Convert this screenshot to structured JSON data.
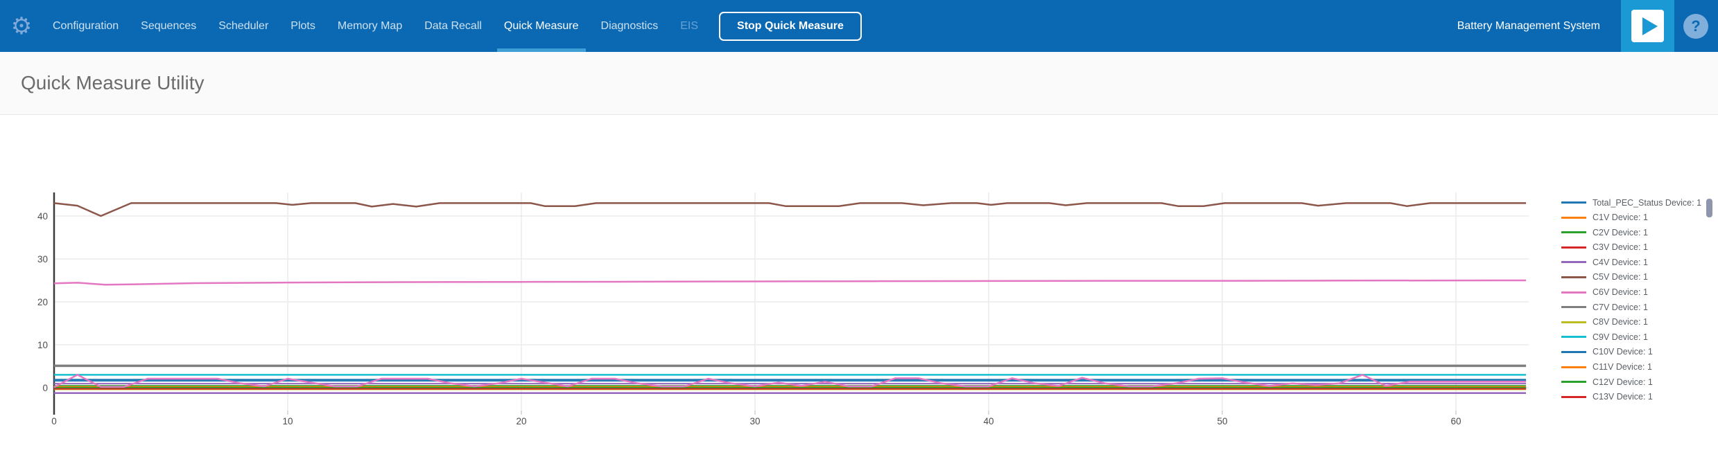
{
  "navbar": {
    "items": [
      {
        "label": "Configuration",
        "state": "normal"
      },
      {
        "label": "Sequences",
        "state": "normal"
      },
      {
        "label": "Scheduler",
        "state": "normal"
      },
      {
        "label": "Plots",
        "state": "normal"
      },
      {
        "label": "Memory Map",
        "state": "normal"
      },
      {
        "label": "Data Recall",
        "state": "normal"
      },
      {
        "label": "Quick Measure",
        "state": "active"
      },
      {
        "label": "Diagnostics",
        "state": "normal"
      },
      {
        "label": "EIS",
        "state": "disabled"
      }
    ],
    "stop_button_label": "Stop Quick Measure",
    "app_title": "Battery Management System",
    "gear_glyph": "⚙",
    "help_glyph": "?"
  },
  "header": {
    "title": "Quick Measure Utility"
  },
  "colors": {
    "navbar_bg": "#0b69b4",
    "active_tab_underline": "#3f9ed6",
    "play_tile_bg": "#1a99d5",
    "help_circle_bg": "#7fafda",
    "grid": "#ececec",
    "axis_line": "#3c3c3c",
    "tick_label": "#4c4c4c"
  },
  "chart_data": {
    "type": "line",
    "title": "",
    "xlabel": "",
    "ylabel": "",
    "xlim": [
      0,
      63
    ],
    "ylim": [
      -5.3,
      45.5
    ],
    "x_ticks": [
      0,
      10,
      20,
      30,
      40,
      50,
      60
    ],
    "y_ticks": [
      0,
      10,
      20,
      30,
      40
    ],
    "grid": true,
    "legend_position": "right",
    "series": [
      {
        "name": "Total_PEC_Status Device: 1",
        "color": "#1f77b4",
        "width": 2,
        "points": [
          [
            0,
            1.9
          ],
          [
            63,
            1.9
          ]
        ]
      },
      {
        "name": "C1V Device: 1",
        "color": "#ff7f0e",
        "width": 2,
        "points": [
          [
            0,
            0.05
          ],
          [
            63,
            0.05
          ]
        ]
      },
      {
        "name": "C2V Device: 1",
        "color": "#2ca02c",
        "width": 2,
        "points": [
          [
            0,
            0.45
          ],
          [
            63,
            0.45
          ]
        ]
      },
      {
        "name": "C3V Device: 1",
        "color": "#d62728",
        "width": 2,
        "points": [
          [
            0,
            -0.1
          ],
          [
            63,
            -0.1
          ]
        ]
      },
      {
        "name": "C4V Device: 1",
        "color": "#9467bd",
        "width": 2,
        "points": [
          [
            0,
            0.95
          ],
          [
            63,
            0.95
          ]
        ]
      },
      {
        "name": "C5V Device: 1",
        "color": "#8c564b",
        "width": 2.5,
        "points": [
          [
            0,
            43
          ],
          [
            1,
            42.4
          ],
          [
            2,
            40
          ],
          [
            3.3,
            43
          ],
          [
            9.5,
            43
          ],
          [
            10.2,
            42.6
          ],
          [
            11,
            43
          ],
          [
            12.9,
            43
          ],
          [
            13.6,
            42.2
          ],
          [
            14.5,
            42.8
          ],
          [
            15.5,
            42.2
          ],
          [
            16.5,
            43
          ],
          [
            20.4,
            43
          ],
          [
            21,
            42.3
          ],
          [
            22.3,
            42.3
          ],
          [
            23.2,
            43
          ],
          [
            30.6,
            43
          ],
          [
            31.3,
            42.3
          ],
          [
            33.6,
            42.3
          ],
          [
            34.5,
            43
          ],
          [
            36.3,
            43
          ],
          [
            37.2,
            42.5
          ],
          [
            38.4,
            43
          ],
          [
            39.5,
            43
          ],
          [
            40.1,
            42.6
          ],
          [
            40.8,
            43
          ],
          [
            42.6,
            43
          ],
          [
            43.3,
            42.5
          ],
          [
            44.2,
            43
          ],
          [
            47.4,
            43
          ],
          [
            48.1,
            42.3
          ],
          [
            49.2,
            42.3
          ],
          [
            50.1,
            43
          ],
          [
            53.4,
            43
          ],
          [
            54.1,
            42.4
          ],
          [
            55.3,
            43
          ],
          [
            57.2,
            43
          ],
          [
            57.9,
            42.3
          ],
          [
            58.9,
            43
          ],
          [
            63,
            43
          ]
        ]
      },
      {
        "name": "C6V Device: 1",
        "color": "#e377c2",
        "width": 2.5,
        "points": [
          [
            0,
            24.3
          ],
          [
            1,
            24.45
          ],
          [
            2.2,
            24.0
          ],
          [
            3.5,
            24.1
          ],
          [
            6,
            24.35
          ],
          [
            10,
            24.5
          ],
          [
            15,
            24.6
          ],
          [
            20,
            24.65
          ],
          [
            25,
            24.7
          ],
          [
            30,
            24.75
          ],
          [
            35,
            24.8
          ],
          [
            40,
            24.85
          ],
          [
            45,
            24.9
          ],
          [
            50,
            24.9
          ],
          [
            55,
            24.95
          ],
          [
            63,
            25.0
          ]
        ]
      },
      {
        "name": "C7V Device: 1",
        "color": "#7f7f7f",
        "width": 3.5,
        "points": [
          [
            0,
            5.1
          ],
          [
            63,
            5.1
          ]
        ]
      },
      {
        "name": "C8V Device: 1",
        "color": "#bcbd22",
        "width": 2,
        "points": [
          [
            0,
            -0.4
          ],
          [
            63,
            -0.4
          ]
        ]
      },
      {
        "name": "C9V Device: 1",
        "color": "#17becf",
        "width": 2.5,
        "points": [
          [
            0,
            3.0
          ],
          [
            63,
            3.0
          ]
        ]
      },
      {
        "name": "C10V Device: 1",
        "color": "#1f77b4",
        "width": 2,
        "points": [
          [
            0,
            1.6
          ],
          [
            63,
            1.6
          ]
        ]
      },
      {
        "name": "C11V Device: 1",
        "color": "#ff7f0e",
        "width": 2,
        "points": [
          [
            0,
            0.2
          ],
          [
            63,
            0.2
          ]
        ]
      },
      {
        "name": "C12V Device: 1",
        "color": "#2ca02c",
        "width": 2,
        "points": [
          [
            0,
            0.0
          ],
          [
            63,
            0.0
          ]
        ]
      },
      {
        "name": "C13V Device: 1",
        "color": "#d62728",
        "width": 2,
        "points": [
          [
            0,
            -0.25
          ],
          [
            63,
            -0.25
          ]
        ]
      },
      {
        "name": "",
        "color": "#9467bd",
        "width": 2.5,
        "points": [
          [
            0,
            -1.25
          ],
          [
            63,
            -1.25
          ]
        ]
      },
      {
        "name": "",
        "color": "#e377c2",
        "width": 2.5,
        "points": [
          [
            0,
            0.1
          ],
          [
            1,
            3
          ],
          [
            2,
            0.2
          ],
          [
            3,
            0.2
          ],
          [
            4,
            2.1
          ],
          [
            5,
            2.1
          ],
          [
            6,
            2.1
          ],
          [
            7,
            2.1
          ],
          [
            8,
            1
          ],
          [
            9,
            0.3
          ],
          [
            10,
            2.1
          ],
          [
            11,
            1.2
          ],
          [
            12,
            0.3
          ],
          [
            13,
            0.3
          ],
          [
            14,
            2.1
          ],
          [
            15,
            2.1
          ],
          [
            16,
            2.1
          ],
          [
            17,
            1
          ],
          [
            18,
            0.3
          ],
          [
            19,
            1
          ],
          [
            20,
            2.1
          ],
          [
            21,
            1.2
          ],
          [
            22,
            0.3
          ],
          [
            23,
            2.1
          ],
          [
            24,
            2.1
          ],
          [
            25,
            1
          ],
          [
            26,
            0.3
          ],
          [
            27,
            0.3
          ],
          [
            28,
            2.1
          ],
          [
            29,
            1
          ],
          [
            30,
            0.3
          ],
          [
            31,
            1.2
          ],
          [
            32,
            0.4
          ],
          [
            33,
            1.4
          ],
          [
            34,
            0.3
          ],
          [
            35,
            0.3
          ],
          [
            36,
            2.2
          ],
          [
            37,
            2.2
          ],
          [
            38,
            1
          ],
          [
            39,
            0.3
          ],
          [
            40,
            0.3
          ],
          [
            41,
            2.2
          ],
          [
            42,
            1
          ],
          [
            43,
            0.4
          ],
          [
            44,
            2.3
          ],
          [
            45,
            1
          ],
          [
            46,
            0.3
          ],
          [
            47,
            0.3
          ],
          [
            48,
            1
          ],
          [
            49,
            2.1
          ],
          [
            50,
            2.2
          ],
          [
            51,
            1.2
          ],
          [
            52,
            0.4
          ],
          [
            53,
            1
          ],
          [
            54,
            0.6
          ],
          [
            55,
            1
          ],
          [
            56,
            3
          ],
          [
            57,
            0.4
          ],
          [
            58,
            1.4
          ],
          [
            63,
            1.4
          ]
        ]
      }
    ]
  }
}
